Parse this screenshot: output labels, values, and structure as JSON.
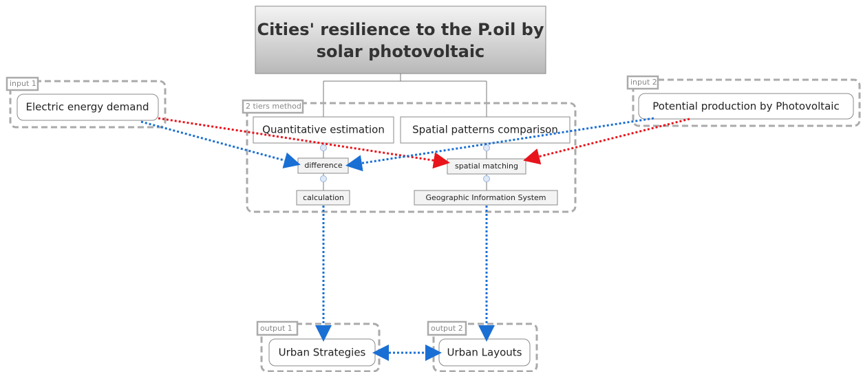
{
  "title": {
    "lines": [
      "Cities' resilience to the P.oil by",
      "solar photovoltaic"
    ]
  },
  "groups": [
    {
      "label": "input 1",
      "nodes": [
        "Electric energy demand"
      ]
    },
    {
      "label": "input 2",
      "nodes": [
        "Potential production by Photovoltaic"
      ]
    },
    {
      "label": "2 tiers method",
      "nodes": [
        "Quantitative estimation",
        "Spatial patterns comparison",
        "difference",
        "spatial matching",
        "calculation",
        "Geographic Information System"
      ]
    },
    {
      "label": "output 1",
      "nodes": [
        "Urban Strategies"
      ]
    },
    {
      "label": "output 2",
      "nodes": [
        "Urban Layouts"
      ]
    }
  ]
}
